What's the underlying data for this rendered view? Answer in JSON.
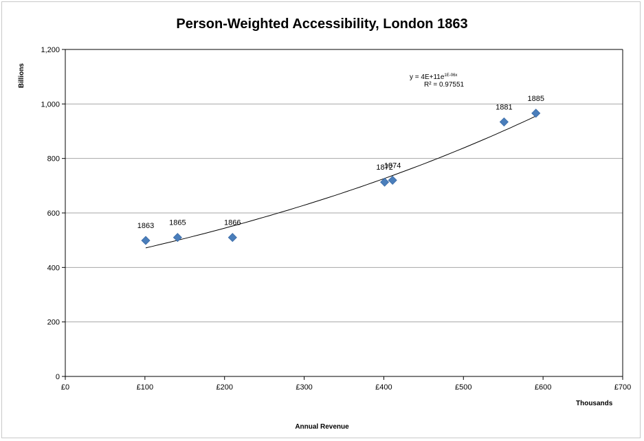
{
  "chart_data": {
    "type": "scatter",
    "title": "Person-Weighted Accessibility, London 1863",
    "ylabel": "Billions",
    "xlabel": "Annual Revenue",
    "x_units_label": "Thousands",
    "xlim": [
      0,
      700
    ],
    "ylim": [
      0,
      1200
    ],
    "x_ticks": [
      "£0",
      "£100",
      "£200",
      "£300",
      "£400",
      "£500",
      "£600",
      "£700"
    ],
    "y_ticks": [
      "0",
      "200",
      "400",
      "600",
      "800",
      "1,000",
      "1,200"
    ],
    "grid": "horizontal major gridlines",
    "marker_color": "#4a7ebb",
    "points": [
      {
        "label": "1863",
        "x": 101,
        "y": 499
      },
      {
        "label": "1865",
        "x": 141,
        "y": 510
      },
      {
        "label": "1866",
        "x": 210,
        "y": 510
      },
      {
        "label": "1872",
        "x": 401,
        "y": 713
      },
      {
        "label": "1874",
        "x": 411,
        "y": 720
      },
      {
        "label": "1881",
        "x": 551,
        "y": 934
      },
      {
        "label": "1885",
        "x": 591,
        "y": 966
      }
    ],
    "trendline": {
      "type": "exponential",
      "x_range": [
        101,
        591
      ],
      "equation_prefix": "y = 4E+11e",
      "equation_exponent": "1E-06x",
      "r2_text": "R² = 0.97551"
    }
  }
}
